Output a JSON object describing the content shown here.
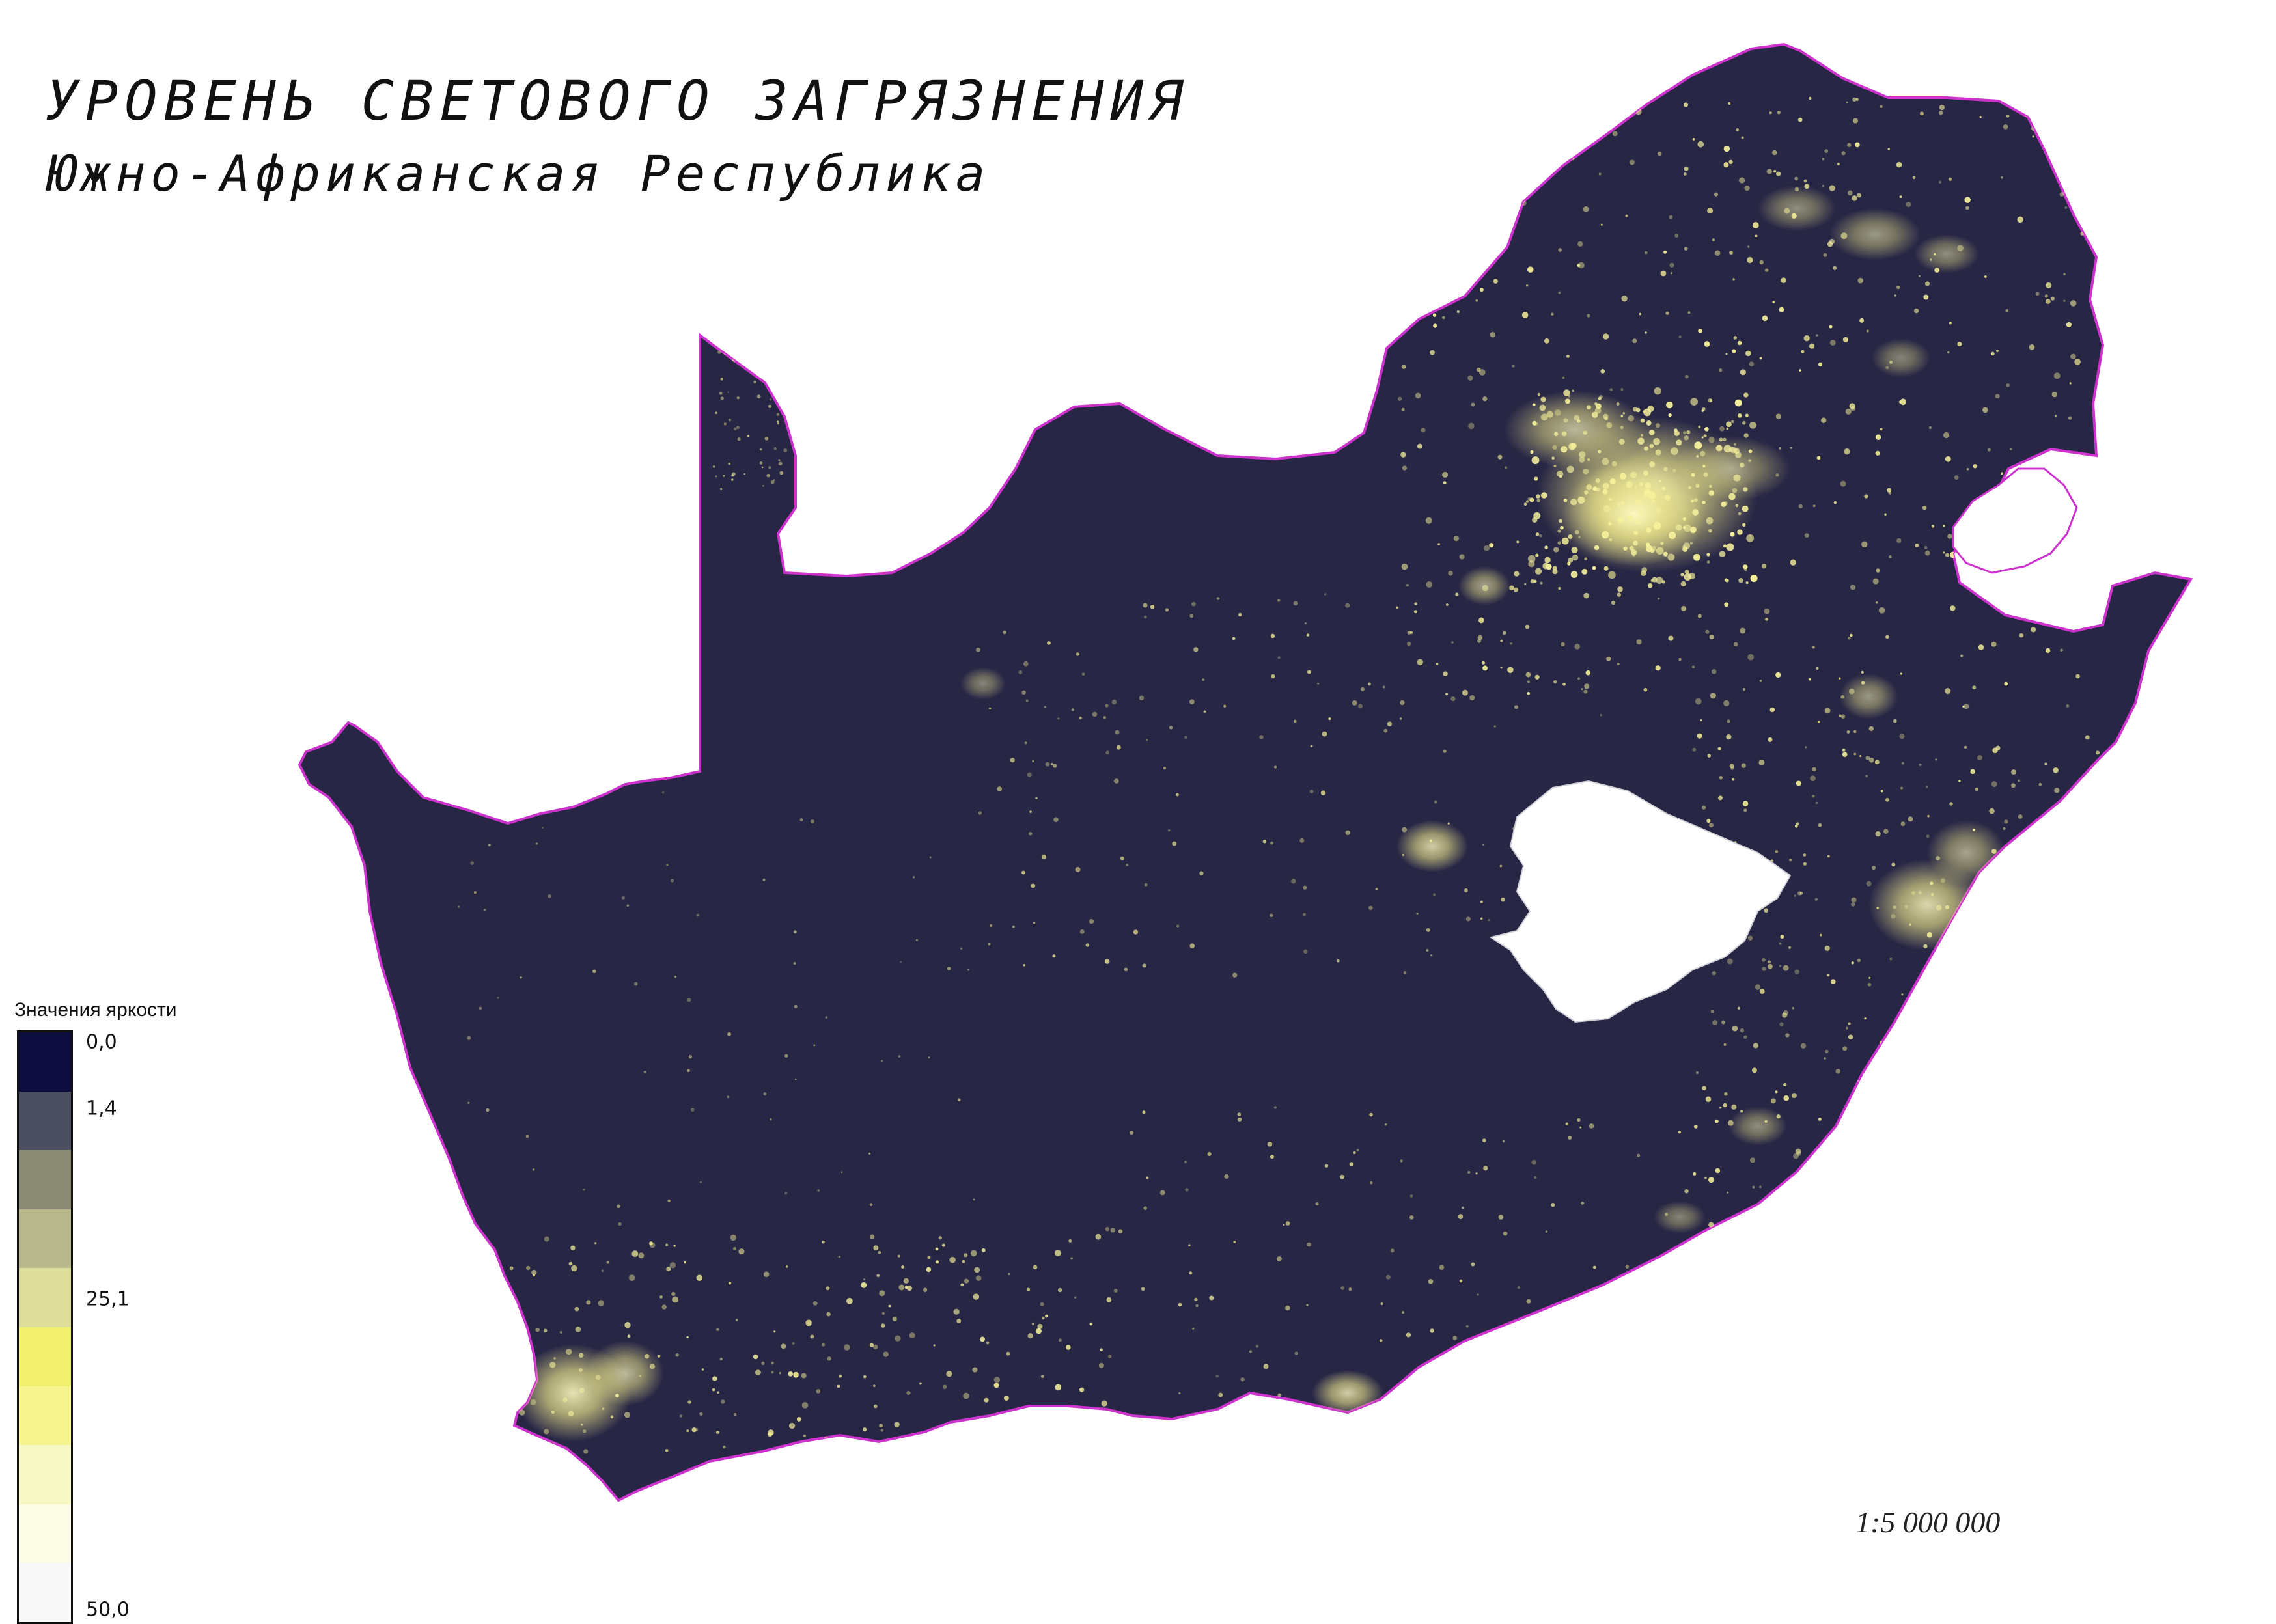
{
  "title": {
    "main": "УРОВЕНЬ СВЕТОВОГО ЗАГРЯЗНЕНИЯ",
    "sub": "Южно-Африканская Республика"
  },
  "map": {
    "land_color": "#272645",
    "border_color": "#cc33cc",
    "enclave_color": "#ffffff",
    "light_color": "#f6f19a"
  },
  "legend": {
    "title": "Значения яркости",
    "swatches": [
      "#0d0d40",
      "#4a4e60",
      "#8a8a72",
      "#b9b88c",
      "#dede9c",
      "#f0ef6e",
      "#f5f48f",
      "#f8f8c6",
      "#fbfbe6",
      "#f8f8f8"
    ],
    "labels": [
      "0,0",
      "1,4",
      "25,1",
      "50,0"
    ]
  },
  "scale": {
    "text": "1:5 000 000"
  }
}
